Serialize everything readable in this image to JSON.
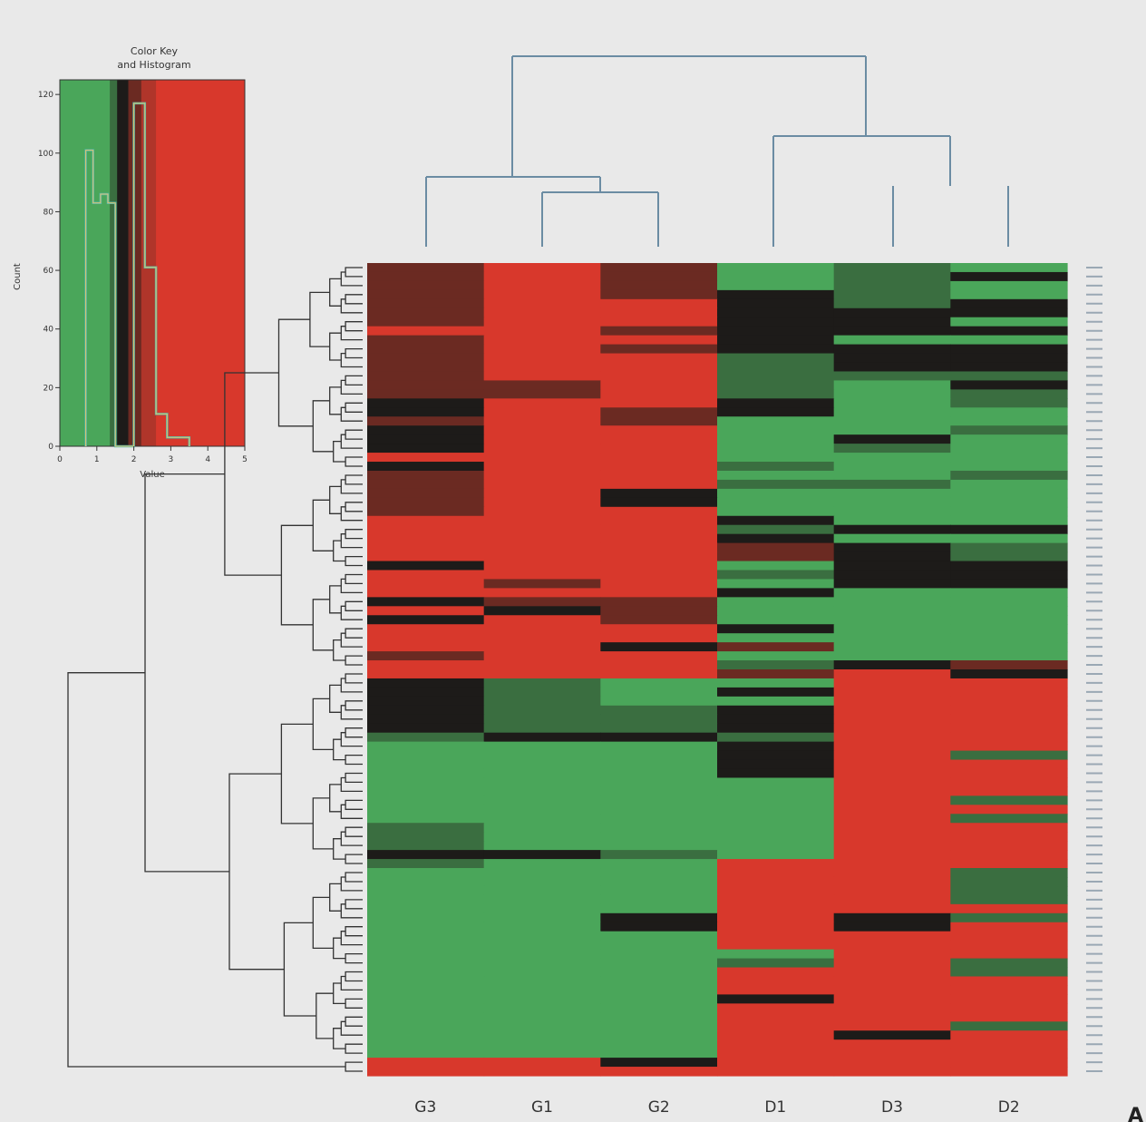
{
  "chart_data": {
    "type": "heatmap",
    "columns": [
      "G3",
      "G1",
      "G2",
      "D1",
      "D3",
      "D2"
    ],
    "row_count": 90,
    "colors": {
      "low": "#4aa65a",
      "mid": "#1d1b19",
      "high": "#d8382c",
      "dark_red": "#6b2a22",
      "dark_green": "#3a6e40",
      "background": "#e9e9e9",
      "dendrogram": "#333333",
      "column_dendrogram": "#6b8ca3"
    },
    "key": {
      "title_line1": "Color Key",
      "title_line2": "and Histogram",
      "xlabel": "Value",
      "ylabel": "Count",
      "x_ticks": [
        "0",
        "1",
        "2",
        "3",
        "4",
        "5"
      ],
      "y_ticks": [
        "0",
        "20",
        "40",
        "60",
        "80",
        "100",
        "120"
      ],
      "range": [
        0,
        5
      ],
      "bands": [
        {
          "to": 1.35,
          "color": "#4aa65a"
        },
        {
          "to": 1.55,
          "color": "#3a6e40"
        },
        {
          "to": 1.85,
          "color": "#1d1b19"
        },
        {
          "to": 2.2,
          "color": "#6b2a22"
        },
        {
          "to": 2.6,
          "color": "#b0352a"
        },
        {
          "to": 5.0,
          "color": "#d8382c"
        }
      ],
      "histogram": [
        [
          0.7,
          0
        ],
        [
          0.7,
          101
        ],
        [
          0.9,
          101
        ],
        [
          0.9,
          83
        ],
        [
          1.1,
          83
        ],
        [
          1.1,
          86
        ],
        [
          1.3,
          86
        ],
        [
          1.3,
          83
        ],
        [
          1.5,
          83
        ],
        [
          1.5,
          0
        ],
        [
          2.0,
          0
        ],
        [
          2.0,
          117
        ],
        [
          2.3,
          117
        ],
        [
          2.3,
          61
        ],
        [
          2.6,
          61
        ],
        [
          2.6,
          11
        ],
        [
          2.9,
          11
        ],
        [
          2.9,
          3
        ],
        [
          3.5,
          3
        ],
        [
          3.5,
          0
        ]
      ]
    },
    "cell_colors": [
      [
        "R",
        "r",
        "R",
        "g",
        "d",
        "G"
      ],
      [
        "R",
        "r",
        "R",
        "g",
        "d",
        "k"
      ],
      [
        "R",
        "r",
        "R",
        "g",
        "d",
        "G"
      ],
      [
        "R",
        "r",
        "R",
        "k",
        "d",
        "G"
      ],
      [
        "R",
        "r",
        "r",
        "k",
        "d",
        "k"
      ],
      [
        "R",
        "r",
        "r",
        "k",
        "k",
        "k"
      ],
      [
        "R",
        "r",
        "r",
        "k",
        "k",
        "G"
      ],
      [
        "r",
        "r",
        "R",
        "k",
        "k",
        "k"
      ],
      [
        "R",
        "r",
        "r",
        "k",
        "g",
        "G"
      ],
      [
        "R",
        "r",
        "R",
        "k",
        "k",
        "k"
      ],
      [
        "R",
        "r",
        "r",
        "d",
        "k",
        "k"
      ],
      [
        "R",
        "r",
        "r",
        "d",
        "k",
        "k"
      ],
      [
        "R",
        "r",
        "r",
        "d",
        "d",
        "d"
      ],
      [
        "R",
        "R",
        "r",
        "d",
        "g",
        "k"
      ],
      [
        "R",
        "R",
        "r",
        "d",
        "g",
        "d"
      ],
      [
        "k",
        "r",
        "r",
        "k",
        "g",
        "d"
      ],
      [
        "k",
        "r",
        "R",
        "k",
        "g",
        "g"
      ],
      [
        "R",
        "r",
        "R",
        "g",
        "g",
        "g"
      ],
      [
        "k",
        "r",
        "r",
        "g",
        "g",
        "d"
      ],
      [
        "k",
        "r",
        "r",
        "g",
        "k",
        "g"
      ],
      [
        "k",
        "r",
        "r",
        "g",
        "d",
        "g"
      ],
      [
        "r",
        "r",
        "r",
        "g",
        "g",
        "g"
      ],
      [
        "k",
        "r",
        "r",
        "d",
        "g",
        "g"
      ],
      [
        "R",
        "r",
        "r",
        "g",
        "g",
        "d"
      ],
      [
        "R",
        "r",
        "r",
        "d",
        "d",
        "g"
      ],
      [
        "R",
        "r",
        "k",
        "g",
        "g",
        "g"
      ],
      [
        "R",
        "r",
        "k",
        "g",
        "g",
        "g"
      ],
      [
        "R",
        "r",
        "r",
        "g",
        "g",
        "g"
      ],
      [
        "r",
        "r",
        "r",
        "k",
        "g",
        "g"
      ],
      [
        "r",
        "r",
        "r",
        "d",
        "k",
        "k"
      ],
      [
        "r",
        "r",
        "r",
        "k",
        "g",
        "g"
      ],
      [
        "r",
        "r",
        "r",
        "R",
        "k",
        "d"
      ],
      [
        "r",
        "r",
        "r",
        "R",
        "k",
        "d"
      ],
      [
        "k",
        "r",
        "r",
        "g",
        "k",
        "k"
      ],
      [
        "r",
        "r",
        "r",
        "d",
        "k",
        "k"
      ],
      [
        "r",
        "R",
        "r",
        "g",
        "k",
        "k"
      ],
      [
        "r",
        "r",
        "r",
        "k",
        "g",
        "g"
      ],
      [
        "k",
        "R",
        "R",
        "g",
        "g",
        "g"
      ],
      [
        "r",
        "k",
        "R",
        "g",
        "g",
        "g"
      ],
      [
        "k",
        "r",
        "R",
        "g",
        "g",
        "g"
      ],
      [
        "r",
        "r",
        "r",
        "k",
        "g",
        "g"
      ],
      [
        "r",
        "r",
        "r",
        "g",
        "g",
        "g"
      ],
      [
        "r",
        "r",
        "k",
        "R",
        "g",
        "g"
      ],
      [
        "R",
        "r",
        "r",
        "g",
        "g",
        "g"
      ],
      [
        "r",
        "r",
        "r",
        "d",
        "k",
        "R"
      ],
      [
        "r",
        "r",
        "r",
        "R",
        "r",
        "k"
      ],
      [
        "k",
        "d",
        "g",
        "g",
        "r",
        "r"
      ],
      [
        "k",
        "d",
        "g",
        "k",
        "r",
        "r"
      ],
      [
        "k",
        "d",
        "g",
        "g",
        "r",
        "r"
      ],
      [
        "k",
        "d",
        "d",
        "k",
        "r",
        "r"
      ],
      [
        "k",
        "d",
        "d",
        "k",
        "r",
        "r"
      ],
      [
        "k",
        "d",
        "d",
        "k",
        "r",
        "r"
      ],
      [
        "d",
        "k",
        "k",
        "d",
        "r",
        "r"
      ],
      [
        "g",
        "g",
        "g",
        "k",
        "r",
        "r"
      ],
      [
        "g",
        "g",
        "g",
        "k",
        "r",
        "d"
      ],
      [
        "g",
        "g",
        "g",
        "k",
        "r",
        "r"
      ],
      [
        "g",
        "g",
        "g",
        "k",
        "r",
        "r"
      ],
      [
        "g",
        "g",
        "g",
        "g",
        "r",
        "r"
      ],
      [
        "g",
        "g",
        "g",
        "g",
        "r",
        "r"
      ],
      [
        "g",
        "g",
        "g",
        "g",
        "r",
        "d"
      ],
      [
        "g",
        "g",
        "g",
        "g",
        "r",
        "r"
      ],
      [
        "g",
        "g",
        "g",
        "g",
        "r",
        "d"
      ],
      [
        "d",
        "g",
        "g",
        "g",
        "r",
        "r"
      ],
      [
        "d",
        "g",
        "g",
        "g",
        "r",
        "r"
      ],
      [
        "d",
        "g",
        "g",
        "g",
        "r",
        "r"
      ],
      [
        "k",
        "k",
        "d",
        "g",
        "r",
        "r"
      ],
      [
        "d",
        "g",
        "g",
        "r",
        "r",
        "r"
      ],
      [
        "g",
        "g",
        "g",
        "r",
        "r",
        "d"
      ],
      [
        "g",
        "g",
        "g",
        "r",
        "r",
        "d"
      ],
      [
        "g",
        "g",
        "g",
        "r",
        "r",
        "d"
      ],
      [
        "g",
        "g",
        "g",
        "r",
        "r",
        "d"
      ],
      [
        "g",
        "g",
        "g",
        "r",
        "r",
        "r"
      ],
      [
        "g",
        "g",
        "k",
        "r",
        "k",
        "d"
      ],
      [
        "g",
        "g",
        "k",
        "r",
        "k",
        "r"
      ],
      [
        "g",
        "g",
        "g",
        "r",
        "r",
        "r"
      ],
      [
        "g",
        "g",
        "g",
        "r",
        "r",
        "r"
      ],
      [
        "g",
        "g",
        "g",
        "g",
        "r",
        "r"
      ],
      [
        "g",
        "g",
        "g",
        "d",
        "r",
        "d"
      ],
      [
        "g",
        "g",
        "g",
        "r",
        "r",
        "d"
      ],
      [
        "g",
        "g",
        "g",
        "r",
        "r",
        "r"
      ],
      [
        "g",
        "g",
        "g",
        "r",
        "r",
        "r"
      ],
      [
        "g",
        "g",
        "g",
        "k",
        "r",
        "r"
      ],
      [
        "g",
        "g",
        "g",
        "r",
        "r",
        "r"
      ],
      [
        "g",
        "g",
        "g",
        "r",
        "r",
        "r"
      ],
      [
        "g",
        "g",
        "g",
        "r",
        "r",
        "d"
      ],
      [
        "g",
        "g",
        "g",
        "r",
        "k",
        "r"
      ],
      [
        "g",
        "g",
        "g",
        "r",
        "r",
        "r"
      ],
      [
        "g",
        "g",
        "g",
        "r",
        "r",
        "r"
      ],
      [
        "r",
        "r",
        "k",
        "r",
        "r",
        "r"
      ],
      [
        "r",
        "r",
        "r",
        "r",
        "r",
        "r"
      ]
    ],
    "cell_color_codes": {
      "R": "dark red",
      "r": "red",
      "k": "black",
      "d": "dark green",
      "g": "green"
    },
    "panel_letter": "A"
  }
}
